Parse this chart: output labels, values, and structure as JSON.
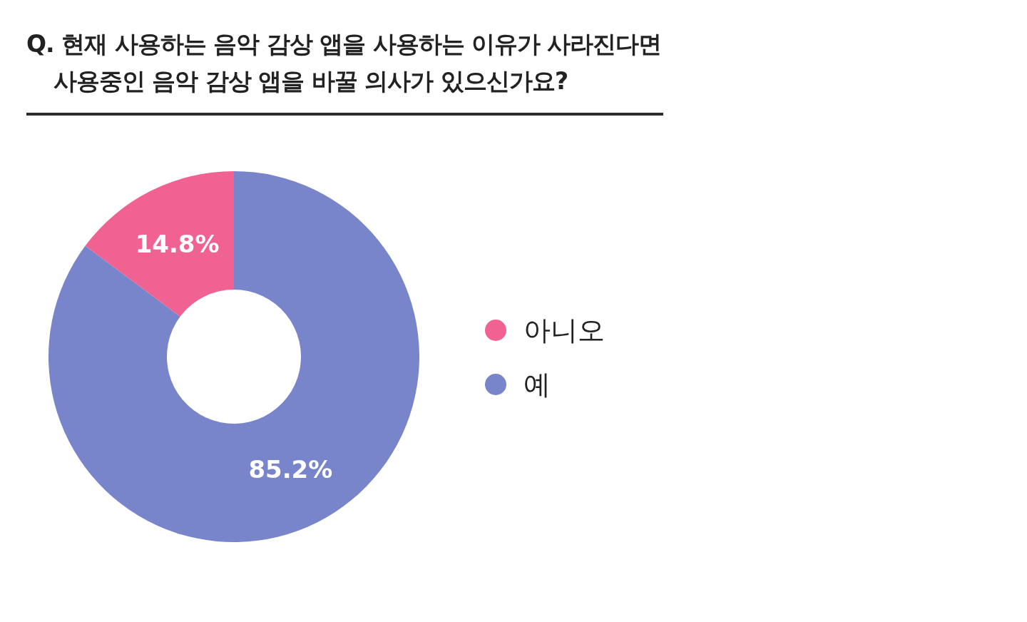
{
  "chart_data": {
    "type": "donut",
    "title": "Q. 현재 사용하는 음악 감상 앱을 사용하는 이유가 사라진다면 사용중인 음악 감상 앱을 바꿀 의사가 있으신가요?",
    "categories": [
      "예",
      "아니오"
    ],
    "values": [
      85.2,
      14.8
    ],
    "colors": [
      "#7985ca",
      "#f06292"
    ],
    "value_labels": [
      "85.2%",
      "14.8%"
    ],
    "legend": "right"
  }
}
